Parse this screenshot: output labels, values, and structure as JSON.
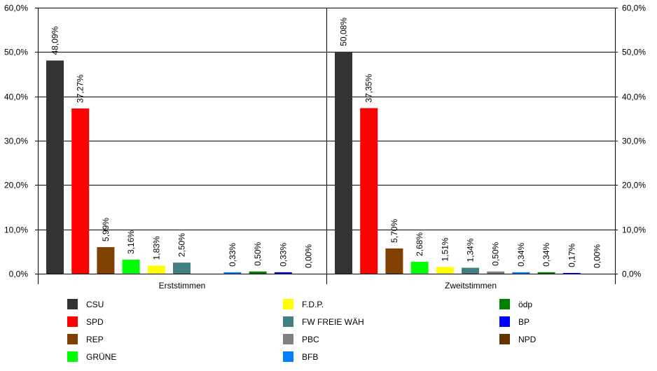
{
  "chart_data": {
    "type": "bar",
    "title": "",
    "xlabel": "",
    "ylabel": "",
    "ylim": [
      0,
      60
    ],
    "y_ticks": [
      "0,0%",
      "10,0%",
      "20,0%",
      "30,0%",
      "40,0%",
      "50,0%",
      "60,0%"
    ],
    "y_axis_both_sides": true,
    "grid": "horizontal",
    "legend_position": "bottom",
    "categories": [
      "Erststimmen",
      "Zweitstimmen"
    ],
    "parties": [
      {
        "name": "CSU",
        "color": "#333333"
      },
      {
        "name": "SPD",
        "color": "#ff0000"
      },
      {
        "name": "REP",
        "color": "#804000"
      },
      {
        "name": "GRÜNE",
        "color": "#00ff00"
      },
      {
        "name": "F.D.P.",
        "color": "#ffff00"
      },
      {
        "name": "FW FREIE WÄH",
        "color": "#408080"
      },
      {
        "name": "PBC",
        "color": "#808080"
      },
      {
        "name": "BFB",
        "color": "#0080ff"
      },
      {
        "name": "ödp",
        "color": "#008000"
      },
      {
        "name": "BP",
        "color": "#0000ff"
      },
      {
        "name": "NPD",
        "color": "#663300"
      }
    ],
    "groups": [
      {
        "name": "Erststimmen",
        "bars": [
          {
            "party": "CSU",
            "value": 48.09,
            "label": "48,09%"
          },
          {
            "party": "SPD",
            "value": 37.27,
            "label": "37,27%"
          },
          {
            "party": "REP",
            "value": 5.99,
            "label": "5,99%"
          },
          {
            "party": "GRÜNE",
            "value": 3.16,
            "label": "3,16%"
          },
          {
            "party": "F.D.P.",
            "value": 1.83,
            "label": "1,83%"
          },
          {
            "party": "FW FREIE WÄH",
            "value": 2.5,
            "label": "2,50%"
          },
          {
            "party": "PBC",
            "value": null,
            "label": ""
          },
          {
            "party": "BFB",
            "value": 0.33,
            "label": "0,33%"
          },
          {
            "party": "ödp",
            "value": 0.5,
            "label": "0,50%"
          },
          {
            "party": "BP",
            "value": 0.33,
            "label": "0,33%"
          },
          {
            "party": "NPD",
            "value": 0.0,
            "label": "0,00%"
          }
        ]
      },
      {
        "name": "Zweitstimmen",
        "bars": [
          {
            "party": "CSU",
            "value": 50.08,
            "label": "50,08%"
          },
          {
            "party": "SPD",
            "value": 37.35,
            "label": "37,35%"
          },
          {
            "party": "REP",
            "value": 5.7,
            "label": "5,70%"
          },
          {
            "party": "GRÜNE",
            "value": 2.68,
            "label": "2,68%"
          },
          {
            "party": "F.D.P.",
            "value": 1.51,
            "label": "1,51%"
          },
          {
            "party": "FW FREIE WÄH",
            "value": 1.34,
            "label": "1,34%"
          },
          {
            "party": "PBC",
            "value": 0.5,
            "label": "0,50%"
          },
          {
            "party": "BFB",
            "value": 0.34,
            "label": "0,34%"
          },
          {
            "party": "ödp",
            "value": 0.34,
            "label": "0,34%"
          },
          {
            "party": "BP",
            "value": 0.17,
            "label": "0,17%"
          },
          {
            "party": "NPD",
            "value": 0.0,
            "label": "0,00%"
          }
        ]
      }
    ],
    "legend": [
      [
        "CSU",
        "SPD",
        "REP",
        "GRÜNE"
      ],
      [
        "F.D.P.",
        "FW FREIE WÄH",
        "PBC",
        "BFB"
      ],
      [
        "ödp",
        "BP",
        "NPD"
      ]
    ]
  }
}
